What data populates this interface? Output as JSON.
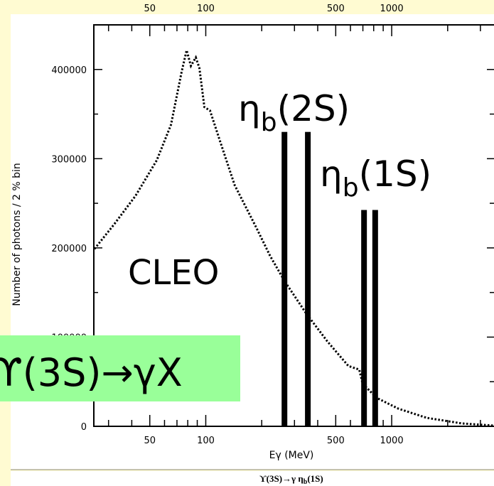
{
  "chart_data": {
    "type": "line",
    "log_x": true,
    "x_label": "Eγ (MeV)",
    "y_label": "Number of photons / 2 % bin",
    "caption": {
      "text": "ϒ(3S)→γ η",
      "sub": "b",
      "suffix": "(1S)"
    },
    "experiment_label": "CLEO",
    "process_label": "ϒ(3S)→γX",
    "xlim": [
      25,
      3550
    ],
    "ylim": [
      0,
      450000
    ],
    "xticks": [
      50,
      100,
      500,
      1000
    ],
    "xminor": [
      30,
      40,
      60,
      70,
      80,
      90,
      200,
      300,
      400,
      600,
      700,
      800,
      900,
      2000,
      3000
    ],
    "yticks": [
      0,
      100000,
      200000,
      300000,
      400000
    ],
    "yminor": [
      50000,
      150000,
      250000,
      350000
    ],
    "series": [
      {
        "color": "#000000",
        "x": [
          25.2,
          32.2,
          41.9,
          54.5,
          65,
          74.2,
          78.9,
          83.2,
          88.4,
          92.4,
          98.3,
          105.4,
          120,
          143,
          187,
          222,
          265,
          345,
          450,
          585,
          669,
          698,
          832,
          1083,
          1542,
          2392,
          3550
        ],
        "values": [
          198800,
          226600,
          258400,
          298200,
          338000,
          397600,
          421500,
          404000,
          413500,
          401600,
          357900,
          353900,
          318100,
          270400,
          222700,
          190900,
          163000,
          127200,
          95400,
          67600,
          63600,
          47700,
          31800,
          19900,
          9500,
          3200,
          800
        ]
      }
    ],
    "lines": [
      {
        "label": {
          "text": "η",
          "sub": "b",
          "suffix": "(2S)"
        },
        "x": [
          265,
          354
        ],
        "values": [
          330000,
          330000
        ]
      },
      {
        "label": {
          "text": "η",
          "sub": "b",
          "suffix": "(1S)"
        },
        "x": [
          710,
          815
        ],
        "values": [
          242500,
          242500
        ]
      }
    ]
  }
}
